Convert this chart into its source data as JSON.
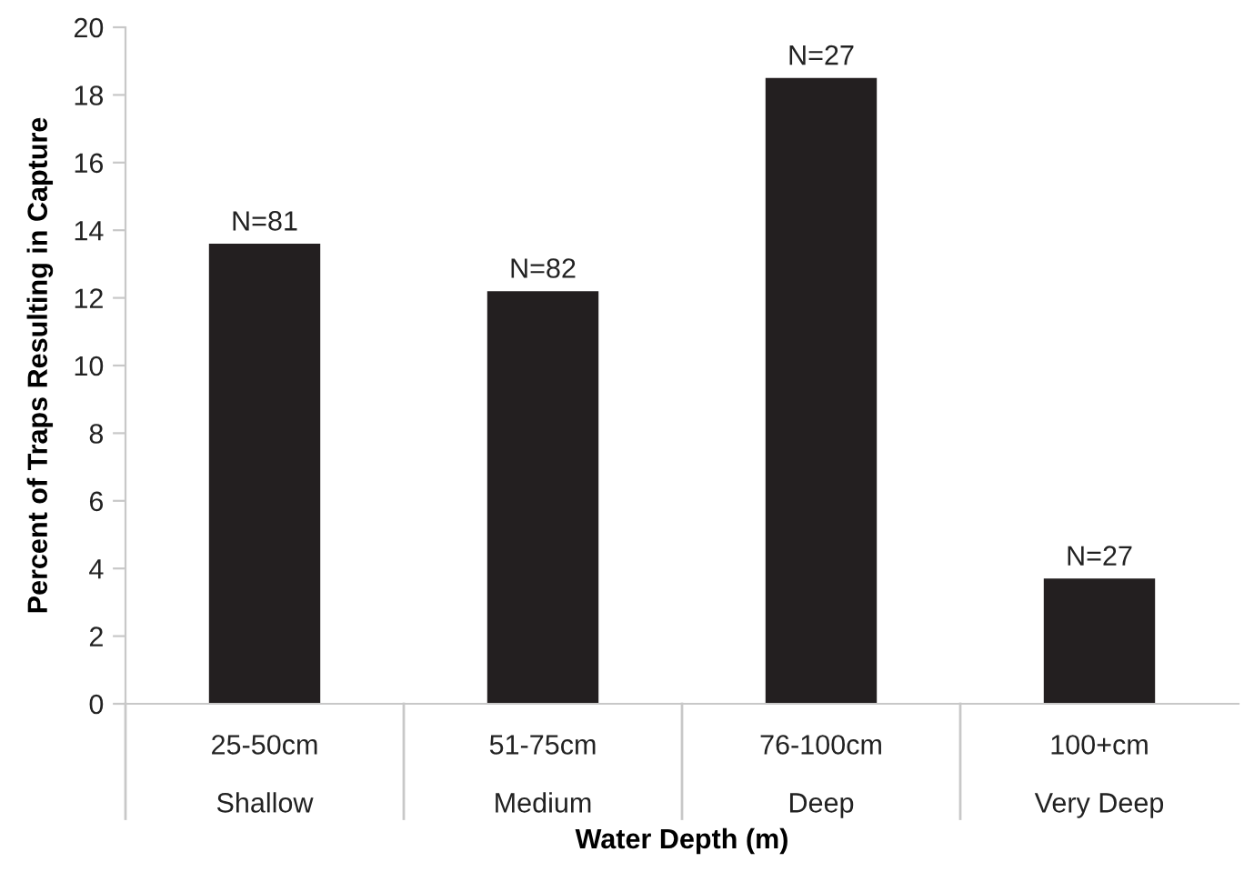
{
  "chart_data": {
    "type": "bar",
    "xlabel": "Water Depth (m)",
    "ylabel": "Percent of Traps Resulting in Capture",
    "categories": [
      "25-50cm\nShallow",
      "51-75cm\nMedium",
      "76-100cm\nDeep",
      "100+cm\nVery Deep"
    ],
    "values": [
      13.6,
      12.2,
      18.5,
      3.7
    ],
    "annotations": [
      {
        "text": "N=81",
        "x": "25-50cm\nShallow",
        "y": 13.6
      },
      {
        "text": "N=82",
        "x": "51-75cm\nMedium",
        "y": 12.2
      },
      {
        "text": "N=27",
        "x": "76-100cm\nDeep",
        "y": 18.5
      },
      {
        "text": "N=27",
        "x": "100+cm\nVery Deep",
        "y": 3.7
      }
    ],
    "color": "#231f20",
    "ylim": [
      0,
      20
    ],
    "yticks": [
      0,
      2,
      4,
      6,
      8,
      10,
      12,
      14,
      16,
      18,
      20
    ],
    "grid": false,
    "legend": false
  }
}
